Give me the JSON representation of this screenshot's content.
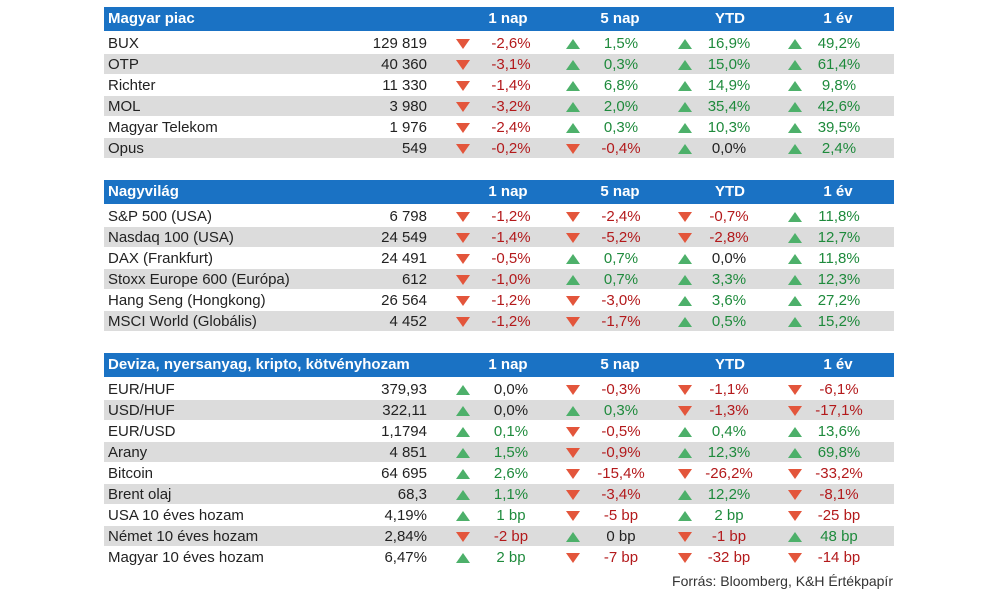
{
  "sections": [
    {
      "header": [
        "Magyar piac",
        "1 nap",
        "5 nap",
        "YTD",
        "1 év"
      ],
      "rows": [
        [
          "BUX",
          "129 819",
          "-2,6%",
          "1,5%",
          "16,9%",
          "49,2%"
        ],
        [
          "OTP",
          "40 360",
          "-3,1%",
          "0,3%",
          "15,0%",
          "61,4%"
        ],
        [
          "Richter",
          "11 330",
          "-1,4%",
          "6,8%",
          "14,9%",
          "9,8%"
        ],
        [
          "MOL",
          "3 980",
          "-3,2%",
          "2,0%",
          "35,4%",
          "42,6%"
        ],
        [
          "Magyar Telekom",
          "1 976",
          "-2,4%",
          "0,3%",
          "10,3%",
          "39,5%"
        ],
        [
          "Opus",
          "549",
          "-0,2%",
          "-0,4%",
          "0,0%",
          "2,4%"
        ]
      ]
    },
    {
      "header": [
        "Nagyvilág",
        "1 nap",
        "5 nap",
        "YTD",
        "1 év"
      ],
      "rows": [
        [
          "S&P 500 (USA)",
          "6 798",
          "-1,2%",
          "-2,4%",
          "-0,7%",
          "11,8%"
        ],
        [
          "Nasdaq 100 (USA)",
          "24 549",
          "-1,4%",
          "-5,2%",
          "-2,8%",
          "12,7%"
        ],
        [
          "DAX (Frankfurt)",
          "24 491",
          "-0,5%",
          "0,7%",
          "0,0%",
          "11,8%"
        ],
        [
          "Stoxx Europe 600 (Európa)",
          "612",
          "-1,0%",
          "0,7%",
          "3,3%",
          "12,3%"
        ],
        [
          "Hang Seng (Hongkong)",
          "26 564",
          "-1,2%",
          "-3,0%",
          "3,6%",
          "27,2%"
        ],
        [
          "MSCI World (Globális)",
          "4 452",
          "-1,2%",
          "-1,7%",
          "0,5%",
          "15,2%"
        ]
      ]
    },
    {
      "header": [
        "Deviza, nyersanyag, kripto, kötvényhozam",
        "1 nap",
        "5 nap",
        "YTD",
        "1 év"
      ],
      "rows": [
        [
          "EUR/HUF",
          "379,93",
          "0,0%",
          "-0,3%",
          "-1,1%",
          "-6,1%"
        ],
        [
          "USD/HUF",
          "322,11",
          "0,0%",
          "0,3%",
          "-1,3%",
          "-17,1%"
        ],
        [
          "EUR/USD",
          "1,1794",
          "0,1%",
          "-0,5%",
          "0,4%",
          "13,6%"
        ],
        [
          "Arany",
          "4 851",
          "1,5%",
          "-0,9%",
          "12,3%",
          "69,8%"
        ],
        [
          "Bitcoin",
          "64 695",
          "2,6%",
          "-15,4%",
          "-26,2%",
          "-33,2%"
        ],
        [
          "Brent olaj",
          "68,3",
          "1,1%",
          "-3,4%",
          "12,2%",
          "-8,1%"
        ],
        [
          "USA 10 éves hozam",
          "4,19%",
          "1 bp",
          "-5 bp",
          "2 bp",
          "-25 bp"
        ],
        [
          "Német 10 éves hozam",
          "2,84%",
          "-2 bp",
          "0 bp",
          "-1 bp",
          "48 bp"
        ],
        [
          "Magyar 10 éves hozam",
          "6,47%",
          "2 bp",
          "-7 bp",
          "-32 bp",
          "-14 bp"
        ]
      ]
    }
  ],
  "source": "Forrás: Bloomberg, K&H Értékpapír"
}
